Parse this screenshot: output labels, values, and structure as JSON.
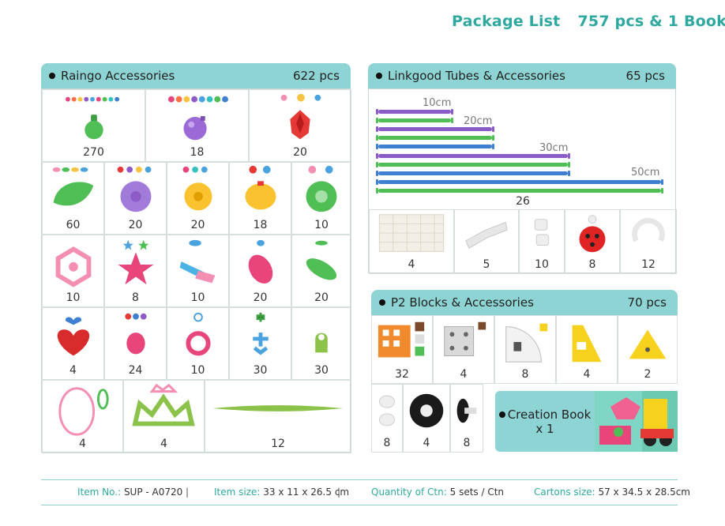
{
  "header": {
    "title": "Package List",
    "summary": "757 pcs & 1 Book"
  },
  "raingo": {
    "title": "Raingo Accessories",
    "total": "622 pcs",
    "rows": [
      [
        "270",
        "18",
        "20"
      ],
      [
        "60",
        "20",
        "20",
        "18",
        "10"
      ],
      [
        "10",
        "8",
        "10",
        "20",
        "20"
      ],
      [
        "4",
        "24",
        "10",
        "30",
        "30"
      ],
      [
        "4",
        "4",
        "12"
      ]
    ]
  },
  "linkgood": {
    "title": "Linkgood Tubes & Accessories",
    "total": "65 pcs",
    "tube_lengths": [
      "10cm",
      "20cm",
      "30cm",
      "50cm"
    ],
    "tube_count": "26",
    "accessories": [
      "4",
      "5",
      "10",
      "8",
      "12"
    ]
  },
  "p2": {
    "title": "P2 Blocks & Accessories",
    "total": "70 pcs",
    "row1": [
      "32",
      "4",
      "8",
      "4",
      "2"
    ],
    "row2": [
      "8",
      "4",
      "8"
    ]
  },
  "book": {
    "line1": "Creation Book",
    "line2": "x 1"
  },
  "footer": {
    "item_no_label": "Item No.:",
    "item_no": "SUP - A0720",
    "item_size_label": "Item size:",
    "item_size": "33 x 11 x 26.5 cm",
    "qty_label": "Quantity of Ctn:",
    "qty": "5 sets / Ctn",
    "carton_label": "Cartons size:",
    "carton": "57 x 34.5 x 28.5cm"
  },
  "colors": {
    "accent": "#2fa9a0",
    "header_bar": "#8ed4d4",
    "tube_purple": "#8a5cc7",
    "tube_green": "#4fbf55",
    "tube_blue": "#3f7fd1"
  }
}
